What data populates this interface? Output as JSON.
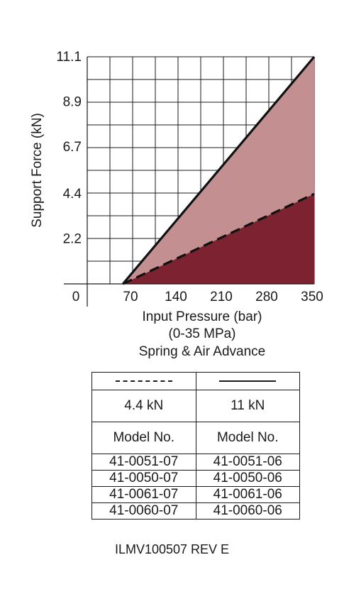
{
  "chart_data": {
    "type": "area",
    "xlabel": "Input Pressure (bar)",
    "xlabel_sub": "(0-35 MPa)",
    "subtitle": "Spring & Air Advance",
    "ylabel": "Support Force (kN)",
    "xlim": [
      0,
      350
    ],
    "ylim": [
      0,
      11.1
    ],
    "x_ticks": [
      0,
      70,
      140,
      210,
      280,
      350
    ],
    "x_tick_labels": [
      "0",
      "70",
      "140",
      "210",
      "280",
      "350"
    ],
    "y_ticks": [
      2.2,
      4.4,
      6.7,
      8.9,
      11.1
    ],
    "y_tick_labels": [
      "2.2",
      "4.4",
      "6.7",
      "8.9",
      "11.1"
    ],
    "grid": true,
    "series": [
      {
        "name": "11 kN",
        "line": "solid",
        "fill": "#c48f90",
        "x": [
          55,
          350
        ],
        "y": [
          0,
          11.1
        ]
      },
      {
        "name": "4.4 kN",
        "line": "dashed",
        "fill": "#7d2230",
        "x": [
          55,
          350
        ],
        "y": [
          0,
          4.4
        ]
      }
    ]
  },
  "table": {
    "legend": [
      "------",
      "———————"
    ],
    "values": [
      "4.4 kN",
      "11 kN"
    ],
    "header": [
      "Model No.",
      "Model No."
    ],
    "rows": [
      [
        "41-0051-07",
        "41-0051-06"
      ],
      [
        "41-0050-07",
        "41-0050-06"
      ],
      [
        "41-0061-07",
        "41-0061-06"
      ],
      [
        "41-0060-07",
        "41-0060-06"
      ]
    ]
  },
  "doc_id": "ILMV100507   REV E"
}
